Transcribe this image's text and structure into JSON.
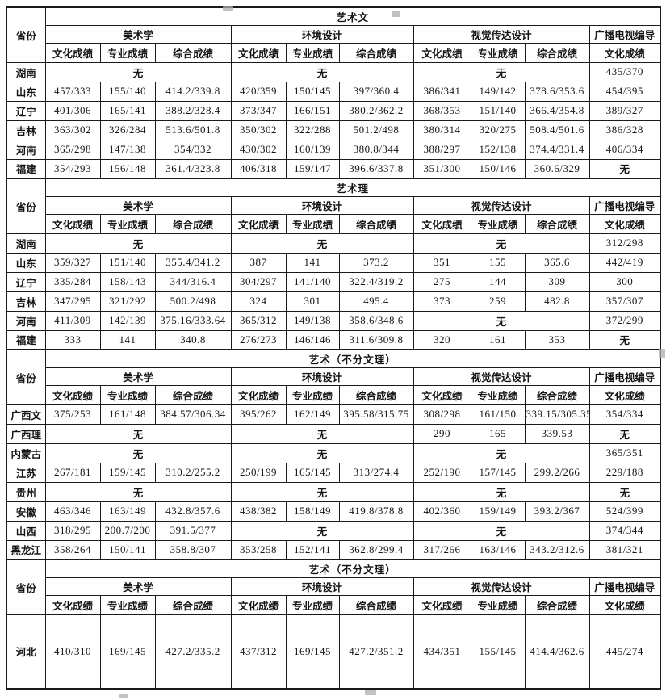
{
  "table": {
    "province_header": "省份",
    "na_text": "无",
    "majors": [
      {
        "label": "美术学",
        "cols": [
          "文化成绩",
          "专业成绩",
          "综合成绩"
        ]
      },
      {
        "label": "环境设计",
        "cols": [
          "文化成绩",
          "专业成绩",
          "综合成绩"
        ]
      },
      {
        "label": "视觉传达设计",
        "cols": [
          "文化成绩",
          "专业成绩",
          "综合成绩"
        ]
      },
      {
        "label": "广播电视编导",
        "cols": [
          "文化成绩"
        ]
      }
    ],
    "sections": [
      {
        "title": "艺术文",
        "rows": [
          {
            "province": "湖南",
            "cells": [
              {
                "t": "无",
                "s": 3
              },
              {
                "t": "无",
                "s": 3
              },
              {
                "t": "无",
                "s": 3
              },
              {
                "t": "435/370"
              }
            ]
          },
          {
            "province": "山东",
            "cells": [
              {
                "t": "457/333"
              },
              {
                "t": "155/140"
              },
              {
                "t": "414.2/339.8"
              },
              {
                "t": "420/359"
              },
              {
                "t": "150/145"
              },
              {
                "t": "397/360.4"
              },
              {
                "t": "386/341"
              },
              {
                "t": "149/142"
              },
              {
                "t": "378.6/353.6"
              },
              {
                "t": "454/395"
              }
            ]
          },
          {
            "province": "辽宁",
            "cells": [
              {
                "t": "401/306"
              },
              {
                "t": "165/141"
              },
              {
                "t": "388.2/328.4"
              },
              {
                "t": "373/347"
              },
              {
                "t": "166/151"
              },
              {
                "t": "380.2/362.2"
              },
              {
                "t": "368/353"
              },
              {
                "t": "151/140"
              },
              {
                "t": "366.4/354.8"
              },
              {
                "t": "389/327"
              }
            ]
          },
          {
            "province": "吉林",
            "cells": [
              {
                "t": "363/302"
              },
              {
                "t": "326/284"
              },
              {
                "t": "513.6/501.8"
              },
              {
                "t": "350/302"
              },
              {
                "t": "322/288"
              },
              {
                "t": "501.2/498"
              },
              {
                "t": "380/314"
              },
              {
                "t": "320/275"
              },
              {
                "t": "508.4/501.6"
              },
              {
                "t": "386/328"
              }
            ]
          },
          {
            "province": "河南",
            "cells": [
              {
                "t": "365/298"
              },
              {
                "t": "147/138"
              },
              {
                "t": "354/332"
              },
              {
                "t": "430/302"
              },
              {
                "t": "160/139"
              },
              {
                "t": "380.8/344"
              },
              {
                "t": "388/297"
              },
              {
                "t": "152/138"
              },
              {
                "t": "374.4/331.4"
              },
              {
                "t": "406/334"
              }
            ]
          },
          {
            "province": "福建",
            "cells": [
              {
                "t": "354/293"
              },
              {
                "t": "156/148"
              },
              {
                "t": "361.4/323.8"
              },
              {
                "t": "406/318"
              },
              {
                "t": "159/147"
              },
              {
                "t": "396.6/337.8"
              },
              {
                "t": "351/300"
              },
              {
                "t": "150/146"
              },
              {
                "t": "360.6/329"
              },
              {
                "t": "无"
              }
            ]
          }
        ]
      },
      {
        "title": "艺术理",
        "rows": [
          {
            "province": "湖南",
            "cells": [
              {
                "t": "无",
                "s": 3
              },
              {
                "t": "无",
                "s": 3
              },
              {
                "t": "无",
                "s": 3
              },
              {
                "t": "312/298"
              }
            ]
          },
          {
            "province": "山东",
            "cells": [
              {
                "t": "359/327"
              },
              {
                "t": "151/140"
              },
              {
                "t": "355.4/341.2"
              },
              {
                "t": "387"
              },
              {
                "t": "141"
              },
              {
                "t": "373.2"
              },
              {
                "t": "351"
              },
              {
                "t": "155"
              },
              {
                "t": "365.6"
              },
              {
                "t": "442/419"
              }
            ]
          },
          {
            "province": "辽宁",
            "cells": [
              {
                "t": "335/284"
              },
              {
                "t": "158/143"
              },
              {
                "t": "344/316.4"
              },
              {
                "t": "304/297"
              },
              {
                "t": "141/140"
              },
              {
                "t": "322.4/319.2"
              },
              {
                "t": "275"
              },
              {
                "t": "144"
              },
              {
                "t": "309"
              },
              {
                "t": "300"
              }
            ]
          },
          {
            "province": "吉林",
            "cells": [
              {
                "t": "347/295"
              },
              {
                "t": "321/292"
              },
              {
                "t": "500.2/498"
              },
              {
                "t": "324"
              },
              {
                "t": "301"
              },
              {
                "t": "495.4"
              },
              {
                "t": "373"
              },
              {
                "t": "259"
              },
              {
                "t": "482.8"
              },
              {
                "t": "357/307"
              }
            ]
          },
          {
            "province": "河南",
            "cells": [
              {
                "t": "411/309"
              },
              {
                "t": "142/139"
              },
              {
                "t": "375.16/333.64"
              },
              {
                "t": "365/312"
              },
              {
                "t": "149/138"
              },
              {
                "t": "358.6/348.6"
              },
              {
                "t": "无",
                "s": 3
              },
              {
                "t": "372/299"
              }
            ]
          },
          {
            "province": "福建",
            "cells": [
              {
                "t": "333"
              },
              {
                "t": "141"
              },
              {
                "t": "340.8"
              },
              {
                "t": "276/273"
              },
              {
                "t": "146/146"
              },
              {
                "t": "311.6/309.8"
              },
              {
                "t": "320"
              },
              {
                "t": "161"
              },
              {
                "t": "353"
              },
              {
                "t": "无"
              }
            ]
          }
        ]
      },
      {
        "title": "艺术（不分文理）",
        "rows": [
          {
            "province": "广西文",
            "cells": [
              {
                "t": "375/253"
              },
              {
                "t": "161/148"
              },
              {
                "t": "384.57/306.34"
              },
              {
                "t": "395/262"
              },
              {
                "t": "162/149"
              },
              {
                "t": "395.58/315.75"
              },
              {
                "t": "308/298"
              },
              {
                "t": "161/150"
              },
              {
                "t": "339.15/305.35"
              },
              {
                "t": "354/334"
              }
            ]
          },
          {
            "province": "广西理",
            "cells": [
              {
                "t": "无",
                "s": 3
              },
              {
                "t": "无",
                "s": 3
              },
              {
                "t": "290"
              },
              {
                "t": "165"
              },
              {
                "t": "339.53"
              },
              {
                "t": "无"
              }
            ]
          },
          {
            "province": "内蒙古",
            "cells": [
              {
                "t": "无",
                "s": 3
              },
              {
                "t": "无",
                "s": 3
              },
              {
                "t": "无",
                "s": 3
              },
              {
                "t": "365/351"
              }
            ]
          },
          {
            "province": "江苏",
            "cells": [
              {
                "t": "267/181"
              },
              {
                "t": "159/145"
              },
              {
                "t": "310.2/255.2"
              },
              {
                "t": "250/199"
              },
              {
                "t": "165/145"
              },
              {
                "t": "313/274.4"
              },
              {
                "t": "252/190"
              },
              {
                "t": "157/145"
              },
              {
                "t": "299.2/266"
              },
              {
                "t": "229/188"
              }
            ]
          },
          {
            "province": "贵州",
            "cells": [
              {
                "t": "无",
                "s": 3
              },
              {
                "t": "无",
                "s": 3
              },
              {
                "t": "无",
                "s": 3
              },
              {
                "t": "无"
              }
            ]
          },
          {
            "province": "安徽",
            "cells": [
              {
                "t": "463/346"
              },
              {
                "t": "163/149"
              },
              {
                "t": "432.8/357.6"
              },
              {
                "t": "438/382"
              },
              {
                "t": "158/149"
              },
              {
                "t": "419.8/378.8"
              },
              {
                "t": "402/360"
              },
              {
                "t": "159/149"
              },
              {
                "t": "393.2/367"
              },
              {
                "t": "524/399"
              }
            ]
          },
          {
            "province": "山西",
            "cells": [
              {
                "t": "318/295"
              },
              {
                "t": "200.7/200"
              },
              {
                "t": "391.5/377"
              },
              {
                "t": "无",
                "s": 3
              },
              {
                "t": "无",
                "s": 3
              },
              {
                "t": "374/344"
              }
            ]
          },
          {
            "province": "黑龙江",
            "cells": [
              {
                "t": "358/264"
              },
              {
                "t": "150/141"
              },
              {
                "t": "358.8/307"
              },
              {
                "t": "353/258"
              },
              {
                "t": "152/141"
              },
              {
                "t": "362.8/299.4"
              },
              {
                "t": "317/266"
              },
              {
                "t": "163/146"
              },
              {
                "t": "343.2/312.6"
              },
              {
                "t": "381/321"
              }
            ]
          }
        ]
      },
      {
        "title": "艺术（不分文理）",
        "tall": true,
        "rows": [
          {
            "province": "河北",
            "cells": [
              {
                "t": "410/310"
              },
              {
                "t": "169/145"
              },
              {
                "t": "427.2/335.2"
              },
              {
                "t": "437/312"
              },
              {
                "t": "169/145"
              },
              {
                "t": "427.2/351.2"
              },
              {
                "t": "434/351"
              },
              {
                "t": "155/145"
              },
              {
                "t": "414.4/362.6"
              },
              {
                "t": "445/274"
              }
            ]
          }
        ]
      }
    ]
  }
}
